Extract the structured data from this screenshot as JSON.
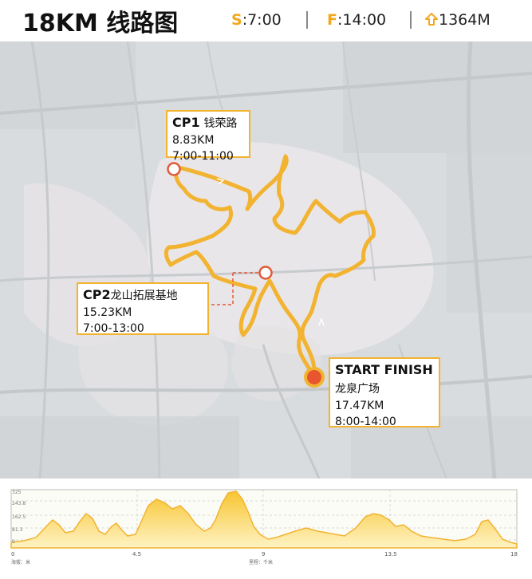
{
  "header": {
    "title": "18KM 线路图",
    "start_key": "S",
    "start_time": ":7:00",
    "finish_key": "F",
    "finish_time": ":14:00",
    "elevation": "1364M"
  },
  "checkpoints": {
    "cp1": {
      "code": "CP1",
      "name": "钱荣路",
      "distance": "8.83KM",
      "time": "7:00-11:00"
    },
    "cp2": {
      "code": "CP2",
      "name": "龙山拓展基地",
      "distance": "15.23KM",
      "time": "7:00-13:00"
    },
    "start": {
      "code": "START FINISH",
      "name": "龙泉广场",
      "distance": "17.47KM",
      "time": "8:00-14:00"
    }
  },
  "profile": {
    "x_ticks": [
      "0",
      "4.5",
      "9",
      "13.5",
      "18"
    ],
    "y_ticks": [
      "325",
      "243.8",
      "162.5",
      "81.3",
      "0"
    ],
    "y_unit": "海拔：米",
    "x_unit": "里程：千米"
  },
  "colors": {
    "route": "#f2b331",
    "accent": "#f2a81d",
    "checkpoint": "#e05a3a",
    "start": "#e8552f"
  }
}
